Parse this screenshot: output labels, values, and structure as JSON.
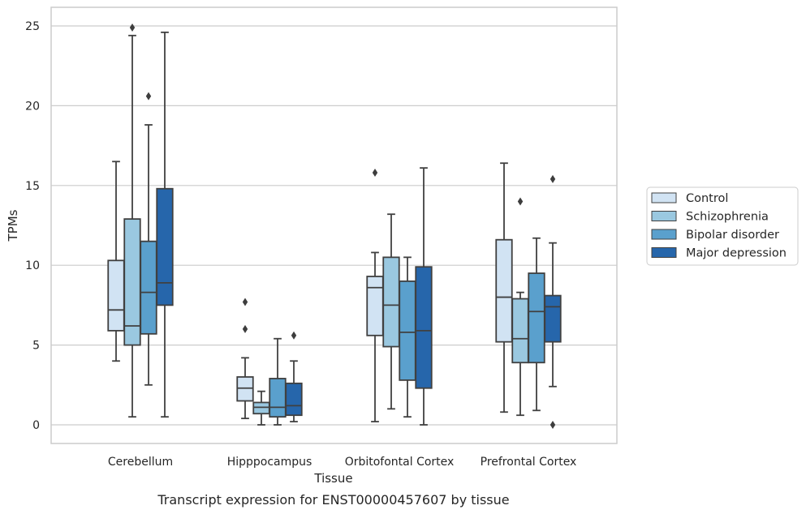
{
  "chart_data": {
    "type": "box",
    "xlabel": "Tissue",
    "ylabel": "TPMs",
    "caption": "Transcript expression for ENST00000457607 by tissue",
    "ylim": [
      -1.2,
      26.2
    ],
    "yticks": [
      0,
      5,
      10,
      15,
      20,
      25
    ],
    "grid": "horizontal",
    "legend_position": "right",
    "categories": [
      "Cerebellum",
      "Hipppocampus",
      "Orbitofontal Cortex",
      "Prefrontal Cortex"
    ],
    "series": [
      {
        "name": "Control",
        "color": "#d1e3f3",
        "boxes": [
          {
            "whisker_low": 4.0,
            "q1": 5.9,
            "median": 7.2,
            "q3": 10.3,
            "whisker_high": 16.5,
            "outliers": []
          },
          {
            "whisker_low": 0.4,
            "q1": 1.5,
            "median": 2.3,
            "q3": 3.0,
            "whisker_high": 4.2,
            "outliers": [
              6.0,
              7.7
            ]
          },
          {
            "whisker_low": 0.2,
            "q1": 5.6,
            "median": 8.6,
            "q3": 9.3,
            "whisker_high": 10.8,
            "outliers": [
              15.8
            ]
          },
          {
            "whisker_low": 0.8,
            "q1": 5.2,
            "median": 8.0,
            "q3": 11.6,
            "whisker_high": 16.4,
            "outliers": []
          }
        ]
      },
      {
        "name": "Schizophrenia",
        "color": "#9ac8e0",
        "boxes": [
          {
            "whisker_low": 0.5,
            "q1": 5.0,
            "median": 6.2,
            "q3": 12.9,
            "whisker_high": 24.4,
            "outliers": [
              24.9
            ]
          },
          {
            "whisker_low": 0.0,
            "q1": 0.7,
            "median": 1.1,
            "q3": 1.4,
            "whisker_high": 2.1,
            "outliers": []
          },
          {
            "whisker_low": 1.0,
            "q1": 4.9,
            "median": 7.5,
            "q3": 10.5,
            "whisker_high": 13.2,
            "outliers": []
          },
          {
            "whisker_low": 0.6,
            "q1": 3.9,
            "median": 5.4,
            "q3": 7.9,
            "whisker_high": 8.3,
            "outliers": [
              14.0
            ]
          }
        ]
      },
      {
        "name": "Bipolar disorder",
        "color": "#5aa0cd",
        "boxes": [
          {
            "whisker_low": 2.5,
            "q1": 5.7,
            "median": 8.3,
            "q3": 11.5,
            "whisker_high": 18.8,
            "outliers": [
              20.6
            ]
          },
          {
            "whisker_low": 0.0,
            "q1": 0.5,
            "median": 1.1,
            "q3": 2.9,
            "whisker_high": 5.4,
            "outliers": []
          },
          {
            "whisker_low": 0.5,
            "q1": 2.8,
            "median": 5.8,
            "q3": 9.0,
            "whisker_high": 10.5,
            "outliers": []
          },
          {
            "whisker_low": 0.9,
            "q1": 3.9,
            "median": 7.1,
            "q3": 9.5,
            "whisker_high": 11.7,
            "outliers": []
          }
        ]
      },
      {
        "name": "Major depression",
        "color": "#2666ab",
        "boxes": [
          {
            "whisker_low": 0.5,
            "q1": 7.5,
            "median": 8.9,
            "q3": 14.8,
            "whisker_high": 24.6,
            "outliers": []
          },
          {
            "whisker_low": 0.2,
            "q1": 0.6,
            "median": 1.2,
            "q3": 2.6,
            "whisker_high": 4.0,
            "outliers": [
              5.6
            ]
          },
          {
            "whisker_low": 0.0,
            "q1": 2.3,
            "median": 5.9,
            "q3": 9.9,
            "whisker_high": 16.1,
            "outliers": []
          },
          {
            "whisker_low": 2.4,
            "q1": 5.2,
            "median": 7.4,
            "q3": 8.1,
            "whisker_high": 11.4,
            "outliers": [
              0.0,
              15.4
            ]
          }
        ]
      }
    ]
  }
}
